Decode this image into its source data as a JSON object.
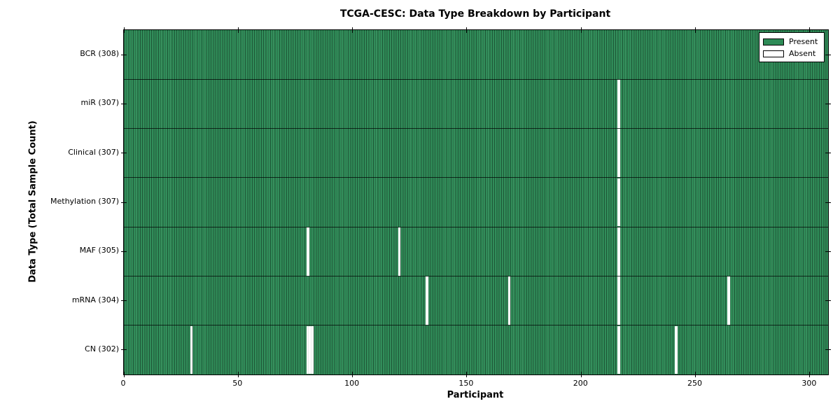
{
  "colors": {
    "present": "#2e8b57",
    "absent": "#ffffff",
    "bar_edge": "rgba(0,0,0,0.38)",
    "frame": "#000000",
    "background": "#ffffff"
  },
  "chart_data": {
    "type": "heatmap",
    "title": "TCGA-CESC: Data Type Breakdown by Participant",
    "xlabel": "Participant",
    "ylabel": "Data Type (Total Sample Count)",
    "n_participants": 308,
    "xlim": [
      0,
      308
    ],
    "x_ticks": [
      0,
      50,
      100,
      150,
      200,
      250,
      300
    ],
    "grid": false,
    "legend": {
      "position": "upper right",
      "entries": [
        {
          "label": "Present",
          "color": "#2e8b57"
        },
        {
          "label": "Absent",
          "color": "#ffffff"
        }
      ]
    },
    "rows": [
      {
        "label": "BCR",
        "total": 308,
        "display": "BCR (308)",
        "absent_participants": []
      },
      {
        "label": "miR",
        "total": 307,
        "display": "miR (307)",
        "absent_participants": [
          216
        ]
      },
      {
        "label": "Clinical",
        "total": 307,
        "display": "Clinical (307)",
        "absent_participants": [
          216
        ]
      },
      {
        "label": "Methylation",
        "total": 307,
        "display": "Methylation (307)",
        "absent_participants": [
          216
        ]
      },
      {
        "label": "MAF",
        "total": 305,
        "display": "MAF (305)",
        "absent_participants": [
          80,
          120,
          216
        ]
      },
      {
        "label": "mRNA",
        "total": 304,
        "display": "mRNA (304)",
        "absent_participants": [
          132,
          168,
          216,
          264
        ]
      },
      {
        "label": "CN",
        "total": 302,
        "display": "CN (302)",
        "absent_participants": [
          29,
          80,
          81,
          82,
          216,
          241
        ]
      }
    ]
  }
}
